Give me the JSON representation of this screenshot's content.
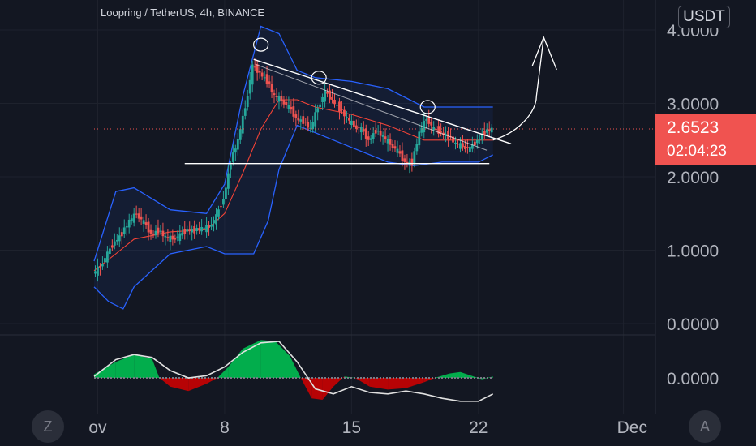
{
  "header": {
    "symbol_title": "Loopring / TetherUS, 4h, BINANCE",
    "currency": "USDT"
  },
  "price_tag": {
    "price": "2.6523",
    "countdown": "02:04:23"
  },
  "buttons": {
    "left": "Z",
    "right": "A"
  },
  "colors": {
    "background": "#131722",
    "up": "#26a69a",
    "down": "#ef5350",
    "band": "#2962ff",
    "basis": "#f44336",
    "osc_up": "#00c853",
    "osc_down": "#d50000",
    "osc_line": "#e0e0e0",
    "price_tag": "#f05350"
  },
  "chart_data": [
    {
      "type": "candlestick",
      "title": "Loopring / TetherUS, 4h, BINANCE",
      "y_ticks": [
        "0.0000",
        "1.0000",
        "2.0000",
        "3.0000",
        "4.0000"
      ],
      "y_range": [
        0,
        4.2
      ],
      "x_ticks": [
        {
          "label": "ov",
          "day": 1
        },
        {
          "label": "8",
          "day": 8
        },
        {
          "label": "15",
          "day": 15
        },
        {
          "label": "22",
          "day": 22
        },
        {
          "label": "Dec",
          "day": 30
        }
      ],
      "current_price": 2.6523,
      "price_path": [
        [
          0.8,
          0.68
        ],
        [
          1.2,
          0.78
        ],
        [
          1.6,
          0.95
        ],
        [
          2.0,
          1.12
        ],
        [
          2.4,
          1.22
        ],
        [
          2.8,
          1.4
        ],
        [
          3.2,
          1.5
        ],
        [
          3.6,
          1.38
        ],
        [
          4.0,
          1.22
        ],
        [
          4.4,
          1.26
        ],
        [
          4.8,
          1.18
        ],
        [
          5.2,
          1.16
        ],
        [
          5.6,
          1.2
        ],
        [
          6.0,
          1.28
        ],
        [
          6.4,
          1.26
        ],
        [
          6.8,
          1.3
        ],
        [
          7.2,
          1.32
        ],
        [
          7.6,
          1.46
        ],
        [
          8.0,
          1.7
        ],
        [
          8.4,
          2.2
        ],
        [
          8.8,
          2.5
        ],
        [
          9.2,
          2.95
        ],
        [
          9.6,
          3.5
        ],
        [
          10.0,
          3.42
        ],
        [
          10.4,
          3.3
        ],
        [
          10.8,
          3.1
        ],
        [
          11.2,
          3.05
        ],
        [
          11.6,
          2.95
        ],
        [
          12.0,
          2.8
        ],
        [
          12.4,
          2.75
        ],
        [
          12.8,
          2.65
        ],
        [
          13.2,
          2.95
        ],
        [
          13.6,
          3.15
        ],
        [
          14.0,
          3.05
        ],
        [
          14.4,
          2.92
        ],
        [
          14.8,
          2.8
        ],
        [
          15.2,
          2.7
        ],
        [
          15.6,
          2.65
        ],
        [
          16.0,
          2.5
        ],
        [
          16.4,
          2.62
        ],
        [
          16.8,
          2.55
        ],
        [
          17.2,
          2.45
        ],
        [
          17.6,
          2.35
        ],
        [
          18.0,
          2.2
        ],
        [
          18.4,
          2.18
        ],
        [
          18.8,
          2.6
        ],
        [
          19.2,
          2.8
        ],
        [
          19.6,
          2.65
        ],
        [
          20.0,
          2.6
        ],
        [
          20.4,
          2.55
        ],
        [
          20.8,
          2.45
        ],
        [
          21.2,
          2.42
        ],
        [
          21.6,
          2.38
        ],
        [
          22.0,
          2.5
        ],
        [
          22.4,
          2.6
        ],
        [
          22.8,
          2.6523
        ]
      ],
      "bollinger": {
        "upper": [
          [
            0.8,
            0.85
          ],
          [
            2.0,
            1.8
          ],
          [
            3.0,
            1.85
          ],
          [
            5.0,
            1.55
          ],
          [
            7.0,
            1.5
          ],
          [
            8.0,
            1.9
          ],
          [
            9.0,
            3.1
          ],
          [
            10.0,
            4.05
          ],
          [
            11.0,
            3.95
          ],
          [
            12.0,
            3.45
          ],
          [
            13.0,
            3.35
          ],
          [
            15.0,
            3.3
          ],
          [
            17.0,
            3.2
          ],
          [
            19.0,
            2.95
          ],
          [
            21.0,
            2.95
          ],
          [
            22.8,
            2.95
          ]
        ],
        "basis": [
          [
            0.8,
            0.72
          ],
          [
            2.0,
            0.95
          ],
          [
            3.0,
            1.15
          ],
          [
            5.0,
            1.25
          ],
          [
            7.0,
            1.28
          ],
          [
            8.0,
            1.5
          ],
          [
            9.0,
            2.05
          ],
          [
            10.0,
            2.65
          ],
          [
            11.0,
            3.05
          ],
          [
            12.0,
            3.05
          ],
          [
            13.0,
            2.95
          ],
          [
            15.0,
            2.85
          ],
          [
            17.0,
            2.7
          ],
          [
            19.0,
            2.5
          ],
          [
            21.0,
            2.5
          ],
          [
            22.8,
            2.5
          ]
        ],
        "lower": [
          [
            0.8,
            0.5
          ],
          [
            1.6,
            0.3
          ],
          [
            2.4,
            0.2
          ],
          [
            3.0,
            0.5
          ],
          [
            5.0,
            0.95
          ],
          [
            7.0,
            1.05
          ],
          [
            8.0,
            0.95
          ],
          [
            9.0,
            0.95
          ],
          [
            9.6,
            0.95
          ],
          [
            10.4,
            1.4
          ],
          [
            11.0,
            2.1
          ],
          [
            12.0,
            2.7
          ],
          [
            13.0,
            2.6
          ],
          [
            15.0,
            2.4
          ],
          [
            17.0,
            2.2
          ],
          [
            18.4,
            2.15
          ],
          [
            20.0,
            2.2
          ],
          [
            22.0,
            2.2
          ],
          [
            22.8,
            2.3
          ]
        ]
      },
      "drawings": {
        "support_line": {
          "from": [
            5.8,
            2.18
          ],
          "to": [
            22.6,
            2.18
          ]
        },
        "trend_line": {
          "from": [
            9.6,
            3.6
          ],
          "to": [
            23.8,
            2.45
          ]
        },
        "circles": [
          {
            "day": 10.0,
            "price": 3.8
          },
          {
            "day": 13.2,
            "price": 3.35
          },
          {
            "day": 19.2,
            "price": 2.95
          }
        ],
        "projection_arrow": [
          [
            22.8,
            2.5
          ],
          [
            24.2,
            2.6
          ],
          [
            25.2,
            3.1
          ],
          [
            25.6,
            3.9
          ]
        ]
      }
    },
    {
      "type": "area",
      "y_ticks": [
        "0.0000"
      ],
      "momentum_histogram": [
        [
          0.8,
          0.05
        ],
        [
          2.0,
          0.22
        ],
        [
          3.0,
          0.32
        ],
        [
          4.0,
          0.26
        ],
        [
          4.4,
          0.0
        ],
        [
          5.0,
          -0.12
        ],
        [
          6.0,
          -0.18
        ],
        [
          7.0,
          -0.08
        ],
        [
          7.6,
          0.0
        ],
        [
          8.2,
          0.15
        ],
        [
          9.0,
          0.4
        ],
        [
          10.0,
          0.52
        ],
        [
          10.8,
          0.5
        ],
        [
          11.6,
          0.3
        ],
        [
          12.2,
          0.0
        ],
        [
          12.8,
          -0.28
        ],
        [
          13.4,
          -0.3
        ],
        [
          14.0,
          -0.12
        ],
        [
          14.6,
          0.02
        ],
        [
          15.2,
          0.0
        ],
        [
          16.0,
          -0.12
        ],
        [
          17.0,
          -0.16
        ],
        [
          18.0,
          -0.14
        ],
        [
          19.0,
          -0.06
        ],
        [
          19.6,
          0.0
        ],
        [
          20.4,
          0.06
        ],
        [
          21.0,
          0.08
        ],
        [
          21.6,
          0.03
        ],
        [
          22.2,
          -0.02
        ],
        [
          22.8,
          0.02
        ]
      ],
      "signal_line": [
        [
          0.8,
          0.02
        ],
        [
          2.0,
          0.25
        ],
        [
          3.0,
          0.32
        ],
        [
          4.0,
          0.28
        ],
        [
          5.0,
          0.1
        ],
        [
          6.0,
          0.0
        ],
        [
          7.0,
          0.03
        ],
        [
          8.0,
          0.15
        ],
        [
          9.0,
          0.35
        ],
        [
          10.0,
          0.48
        ],
        [
          11.0,
          0.5
        ],
        [
          12.0,
          0.22
        ],
        [
          13.0,
          -0.15
        ],
        [
          14.0,
          -0.22
        ],
        [
          15.0,
          -0.12
        ],
        [
          16.0,
          -0.2
        ],
        [
          17.0,
          -0.22
        ],
        [
          18.0,
          -0.18
        ],
        [
          19.0,
          -0.22
        ],
        [
          20.0,
          -0.28
        ],
        [
          21.0,
          -0.32
        ],
        [
          22.0,
          -0.32
        ],
        [
          22.8,
          -0.22
        ]
      ]
    }
  ]
}
